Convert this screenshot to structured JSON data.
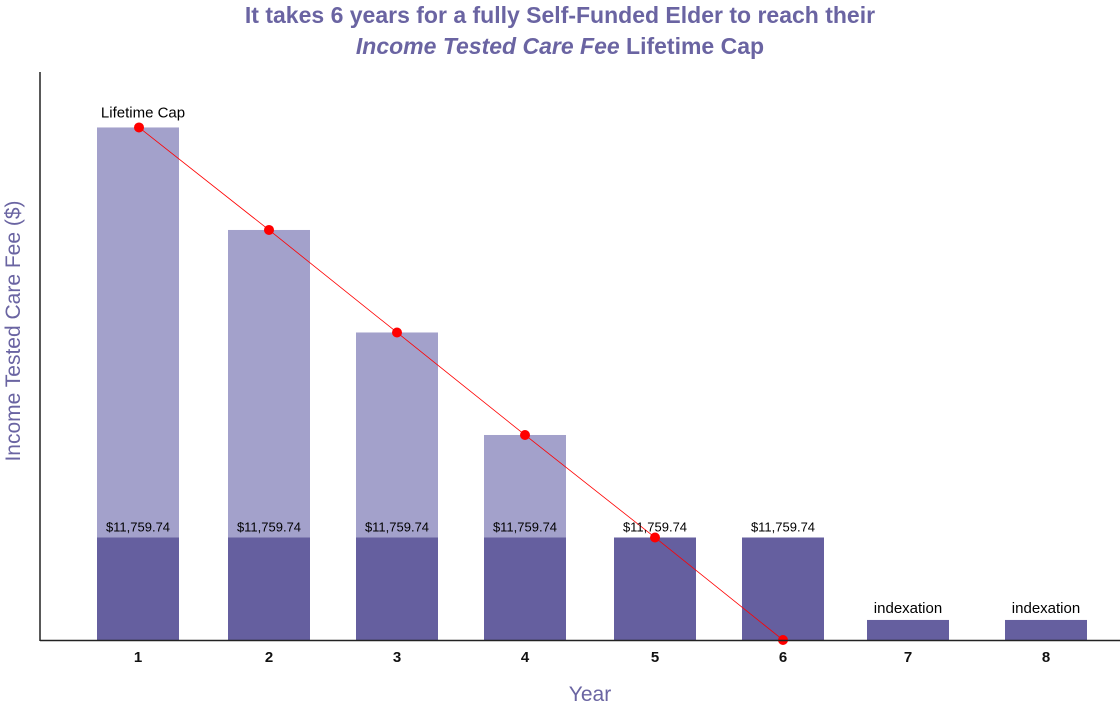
{
  "chart_data": {
    "type": "bar",
    "title_line1": "It takes 6 years for a fully Self-Funded Elder to reach their",
    "title_line2_italic": "Income Tested Care Fee",
    "title_line2_rest": " Lifetime Cap",
    "xlabel": "Year",
    "ylabel": "Income Tested Care Fee ($)",
    "categories": [
      "1",
      "2",
      "3",
      "4",
      "5",
      "6",
      "7",
      "8"
    ],
    "series": [
      {
        "values": [
          11759.74,
          11759.74,
          11759.74,
          11759.74,
          11759.74,
          11759.74,
          2300,
          2300
        ]
      },
      {
        "values": [
          47040,
          35280,
          23520,
          11760,
          0,
          0,
          0,
          0
        ]
      }
    ],
    "bar_labels": [
      "$11,759.74",
      "$11,759.74",
      "$11,759.74",
      "$11,759.74",
      "$11,759.74",
      "$11,759.74",
      "indexation",
      "indexation"
    ],
    "cap_line": {
      "values": [
        58800,
        47040,
        35280,
        23520,
        11760,
        0
      ]
    },
    "cap_label": "Lifetime Cap",
    "ylim": [
      0,
      60000
    ],
    "grid": false,
    "colors": {
      "base": "#655f9f",
      "remaining": "#a3a1cb",
      "cap_line": "#ff0000",
      "title": "#6a64a2"
    }
  }
}
